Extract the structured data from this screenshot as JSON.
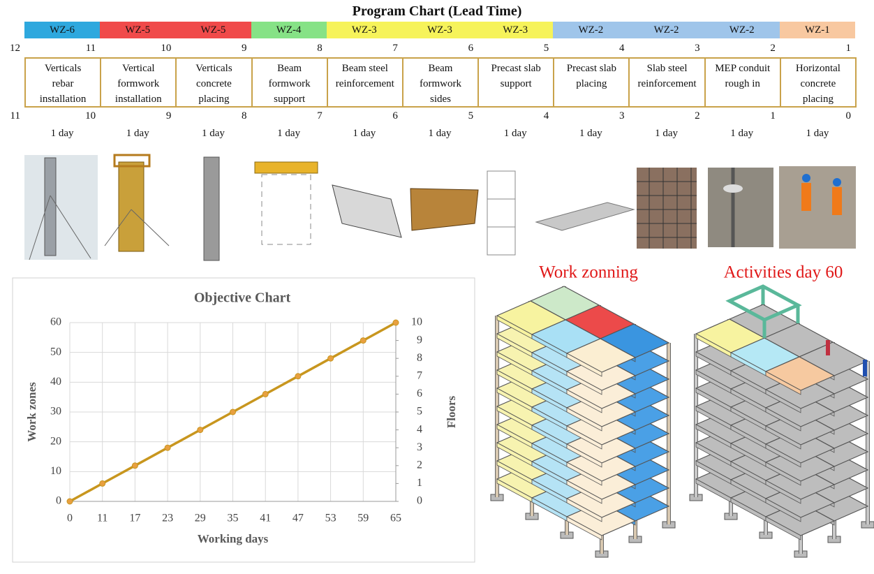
{
  "program_chart": {
    "title": "Program Chart (Lead Time)",
    "zones": [
      {
        "label": "WZ-6",
        "color": "#2ea8de"
      },
      {
        "label": "WZ-5",
        "color": "#f04a4a"
      },
      {
        "label": "WZ-5",
        "color": "#f04a4a"
      },
      {
        "label": "WZ-4",
        "color": "#86e286"
      },
      {
        "label": "WZ-3",
        "color": "#f6f35a"
      },
      {
        "label": "WZ-3",
        "color": "#f6f35a"
      },
      {
        "label": "WZ-3",
        "color": "#f6f35a"
      },
      {
        "label": "WZ-2",
        "color": "#9fc5ea"
      },
      {
        "label": "WZ-2",
        "color": "#9fc5ea"
      },
      {
        "label": "WZ-2",
        "color": "#9fc5ea"
      },
      {
        "label": "WZ-1",
        "color": "#f8c8a0"
      }
    ],
    "start_days": [
      12,
      11,
      10,
      9,
      8,
      7,
      6,
      5,
      4,
      3,
      2,
      1
    ],
    "activities": [
      "Verticals\nrebar\ninstallation",
      "Vertical\nformwork\ninstallation",
      "Verticals\nconcrete\nplacing",
      "Beam\nformwork\nsupport",
      "Beam steel\nreinforcement",
      "Beam\nformwork\nsides",
      "Precast slab\nsupport",
      "Precast slab\nplacing",
      "Slab steel\nreinforcement",
      "MEP conduit\nrough in",
      "Horizontal\nconcrete\nplacing"
    ],
    "finish_days": [
      11,
      10,
      9,
      8,
      7,
      6,
      5,
      4,
      3,
      2,
      1,
      0
    ],
    "durations": [
      "1 day",
      "1 day",
      "1 day",
      "1 day",
      "1 day",
      "1 day",
      "1 day",
      "1 day",
      "1 day",
      "1 day",
      "1 day"
    ]
  },
  "work_zoning": {
    "title": "Work zonning"
  },
  "activities_day": {
    "title": "Activities day 60"
  },
  "chart_data": {
    "type": "line",
    "title": "Objective Chart",
    "x_label": "Working days",
    "y_label": "Work zones",
    "y2_label": "Floors",
    "categories": [
      "0",
      "11",
      "17",
      "23",
      "29",
      "35",
      "41",
      "47",
      "53",
      "59",
      "65"
    ],
    "values": [
      0,
      6,
      12,
      18,
      24,
      30,
      36,
      42,
      48,
      54,
      60
    ],
    "color": "#c8961e",
    "ylim": [
      0,
      60
    ],
    "yticks": [
      0,
      10,
      20,
      30,
      40,
      50,
      60
    ],
    "y2lim": [
      0,
      10
    ],
    "y2ticks": [
      0,
      1,
      2,
      3,
      4,
      5,
      6,
      7,
      8,
      9,
      10
    ],
    "grid": true
  }
}
